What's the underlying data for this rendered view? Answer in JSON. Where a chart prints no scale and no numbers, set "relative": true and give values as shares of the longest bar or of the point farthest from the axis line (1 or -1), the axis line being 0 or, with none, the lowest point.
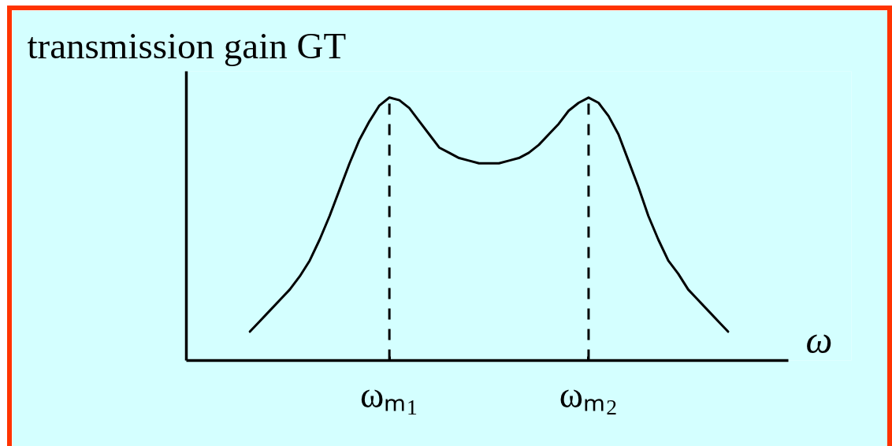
{
  "chart_data": {
    "type": "line",
    "relative": true,
    "ylabel": "transmission gain GT",
    "xlabel": "ω",
    "categories": [
      null,
      null,
      null,
      null,
      null,
      null,
      null,
      null,
      null,
      null,
      null,
      null,
      null,
      null,
      "ωₘ₁",
      null,
      null,
      null,
      null,
      null,
      null,
      null,
      null,
      null,
      null,
      null,
      null,
      null,
      null,
      null,
      null,
      null,
      null,
      null,
      "ωₘ₂",
      null,
      null,
      null,
      null,
      null,
      null,
      null,
      null,
      null,
      null,
      null,
      null,
      null,
      null
    ],
    "series": [
      {
        "color": "#000000",
        "values": [
          0.11,
          0.15,
          0.19,
          0.23,
          0.27,
          0.32,
          0.38,
          0.46,
          0.55,
          0.65,
          0.75,
          0.84,
          0.91,
          0.97,
          1.0,
          0.99,
          0.96,
          0.91,
          0.86,
          0.81,
          0.79,
          0.77,
          0.76,
          0.75,
          0.75,
          0.75,
          0.76,
          0.77,
          0.79,
          0.82,
          0.86,
          0.9,
          0.95,
          0.98,
          1.0,
          0.98,
          0.93,
          0.86,
          0.76,
          0.66,
          0.55,
          0.46,
          0.38,
          0.33,
          0.27,
          0.23,
          0.19,
          0.15,
          0.11
        ]
      }
    ],
    "line_style": "solid",
    "ref_lines": [
      {
        "axis": "x",
        "value": "ωₘ₁",
        "line_style": "dashed",
        "color": "#000000"
      },
      {
        "axis": "x",
        "value": "ωₘ₂",
        "line_style": "dashed",
        "color": "#000000"
      }
    ]
  }
}
